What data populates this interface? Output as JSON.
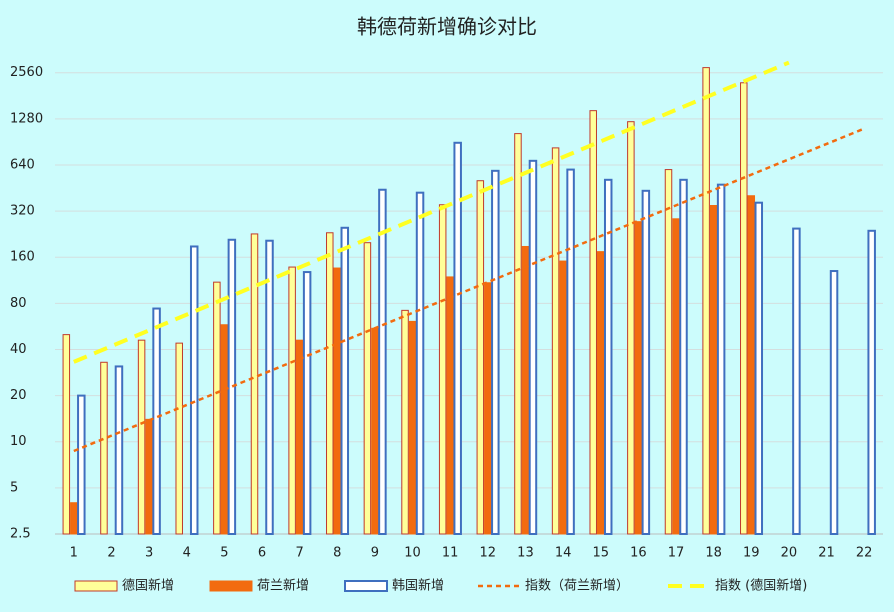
{
  "chart_data": {
    "type": "bar",
    "title": "韩德荷新增确诊对比",
    "categories": [
      "1",
      "2",
      "3",
      "4",
      "5",
      "6",
      "7",
      "8",
      "9",
      "10",
      "11",
      "12",
      "13",
      "14",
      "15",
      "16",
      "17",
      "18",
      "19",
      "20",
      "21",
      "22"
    ],
    "log_scale": true,
    "log_base": 2,
    "ylim": [
      2.5,
      3600
    ],
    "yticks": [
      2.5,
      5,
      10,
      20,
      40,
      80,
      160,
      320,
      640,
      1280,
      2560
    ],
    "grid": true,
    "legend": "bottom",
    "series": [
      {
        "name": "德国新增",
        "type": "bar",
        "color": "#ffff99",
        "edge": "#c0392b",
        "values": [
          50,
          33,
          46,
          44,
          110,
          227,
          138,
          231,
          199,
          72,
          352,
          505,
          1025,
          827,
          1447,
          1226,
          597,
          2763,
          2200,
          null,
          null,
          null
        ]
      },
      {
        "name": "荷兰新增",
        "type": "bar",
        "color": "#f26b0f",
        "edge": "#f26b0f",
        "values": [
          4,
          null,
          14,
          null,
          58,
          null,
          46,
          136,
          55,
          61,
          119,
          109,
          188,
          151,
          174,
          273,
          285,
          348,
          403,
          null,
          null,
          null
        ]
      },
      {
        "name": "韩国新增",
        "type": "bar",
        "color": "#ffffff",
        "edge": "#3f6fbf",
        "values": [
          20,
          31,
          74,
          188,
          208,
          205,
          128,
          249,
          441,
          422,
          893,
          586,
          681,
          597,
          512,
          434,
          512,
          476,
          363,
          246,
          130,
          238
        ]
      },
      {
        "name": "指数（荷兰新增）",
        "type": "line",
        "color": "#f26b0f",
        "dash": "5 4",
        "x": [
          1,
          22
        ],
        "values": [
          8.7,
          1105
        ]
      },
      {
        "name": "指数 (德国新增)",
        "type": "line",
        "color": "#ffff22",
        "dash": "14 8",
        "x": [
          1,
          20
        ],
        "values": [
          33.2,
          2980
        ]
      }
    ]
  }
}
